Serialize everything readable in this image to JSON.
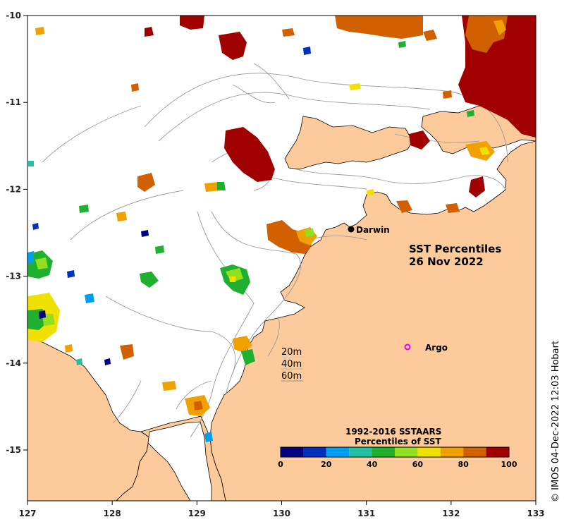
{
  "map": {
    "title_line1": "SST Percentiles",
    "title_line2": "26 Nov 2022",
    "credit": "© IMOS 04-Dec-2022 12:03 Hobart",
    "x_ticks": [
      "127",
      "128",
      "129",
      "130",
      "131",
      "132",
      "133"
    ],
    "y_ticks": [
      "-10",
      "-11",
      "-12",
      "-13",
      "-14",
      "-15"
    ],
    "places": {
      "darwin": "Darwin",
      "argo": "Argo"
    },
    "isobaths": [
      "20m",
      "40m",
      "60m"
    ],
    "land_color": "#fdcb9b",
    "argo_color": "#e800e8",
    "colorbar": {
      "title_line1": "1992-2016 SSTAARS",
      "title_line2": "Percentiles of SST",
      "ticks": [
        "0",
        "20",
        "40",
        "60",
        "80",
        "100"
      ],
      "colors": [
        "#000080",
        "#0030c0",
        "#00a0f0",
        "#20c0a0",
        "#20b030",
        "#90e020",
        "#f0e000",
        "#f0a000",
        "#d06000",
        "#a00000"
      ]
    }
  }
}
